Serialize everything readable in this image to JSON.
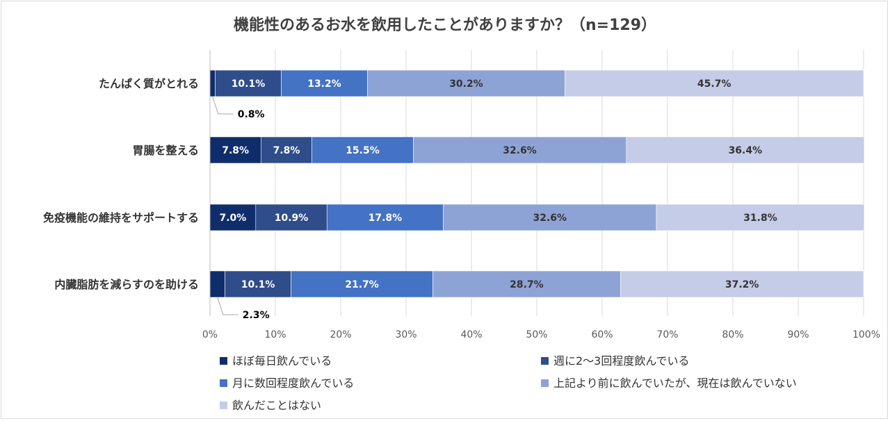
{
  "chart_data": {
    "type": "bar",
    "orientation": "horizontal-stacked-100",
    "title": "機能性のあるお水を飲用したことがありますか？（n=129）",
    "categories": [
      "たんぱく質がとれる",
      "胃腸を整える",
      "免疫機能の維持をサポートする",
      "内臓脂肪を減らすのを助ける"
    ],
    "series": [
      {
        "name": "ほぼ毎日飲んでいる",
        "color": "#0f2d6b",
        "text_color": "#ffffff",
        "values": [
          0.8,
          7.8,
          7.0,
          2.3
        ],
        "labels": [
          "0.8%",
          "7.8%",
          "7.0%",
          "2.3%"
        ]
      },
      {
        "name": "週に2～3回程度飲んでいる",
        "color": "#2e4d8a",
        "text_color": "#ffffff",
        "values": [
          10.1,
          7.8,
          10.9,
          10.1
        ],
        "labels": [
          "10.1%",
          "7.8%",
          "10.9%",
          "10.1%"
        ]
      },
      {
        "name": "月に数回程度飲んでいる",
        "color": "#4472c4",
        "text_color": "#ffffff",
        "values": [
          13.2,
          15.5,
          17.8,
          21.7
        ],
        "labels": [
          "13.2%",
          "15.5%",
          "17.8%",
          "21.7%"
        ]
      },
      {
        "name": "上記より前に飲んでいたが、現在は飲んでいない",
        "color": "#8ea3d5",
        "text_color": "#333333",
        "values": [
          30.2,
          32.6,
          32.6,
          28.7
        ],
        "labels": [
          "30.2%",
          "32.6%",
          "32.6%",
          "28.7%"
        ]
      },
      {
        "name": "飲んだことはない",
        "color": "#c5cce7",
        "text_color": "#333333",
        "values": [
          45.7,
          36.4,
          31.8,
          37.2
        ],
        "labels": [
          "45.7%",
          "36.4%",
          "31.8%",
          "37.2%"
        ]
      }
    ],
    "xlim": [
      0,
      100
    ],
    "x_ticks": [
      "0%",
      "10%",
      "20%",
      "30%",
      "40%",
      "50%",
      "60%",
      "70%",
      "80%",
      "90%",
      "100%"
    ],
    "grid": true,
    "legend_position": "bottom",
    "callouts": [
      {
        "category_index": 0,
        "series_index": 0,
        "label": "0.8%"
      },
      {
        "category_index": 3,
        "series_index": 0,
        "label": "2.3%"
      }
    ]
  }
}
